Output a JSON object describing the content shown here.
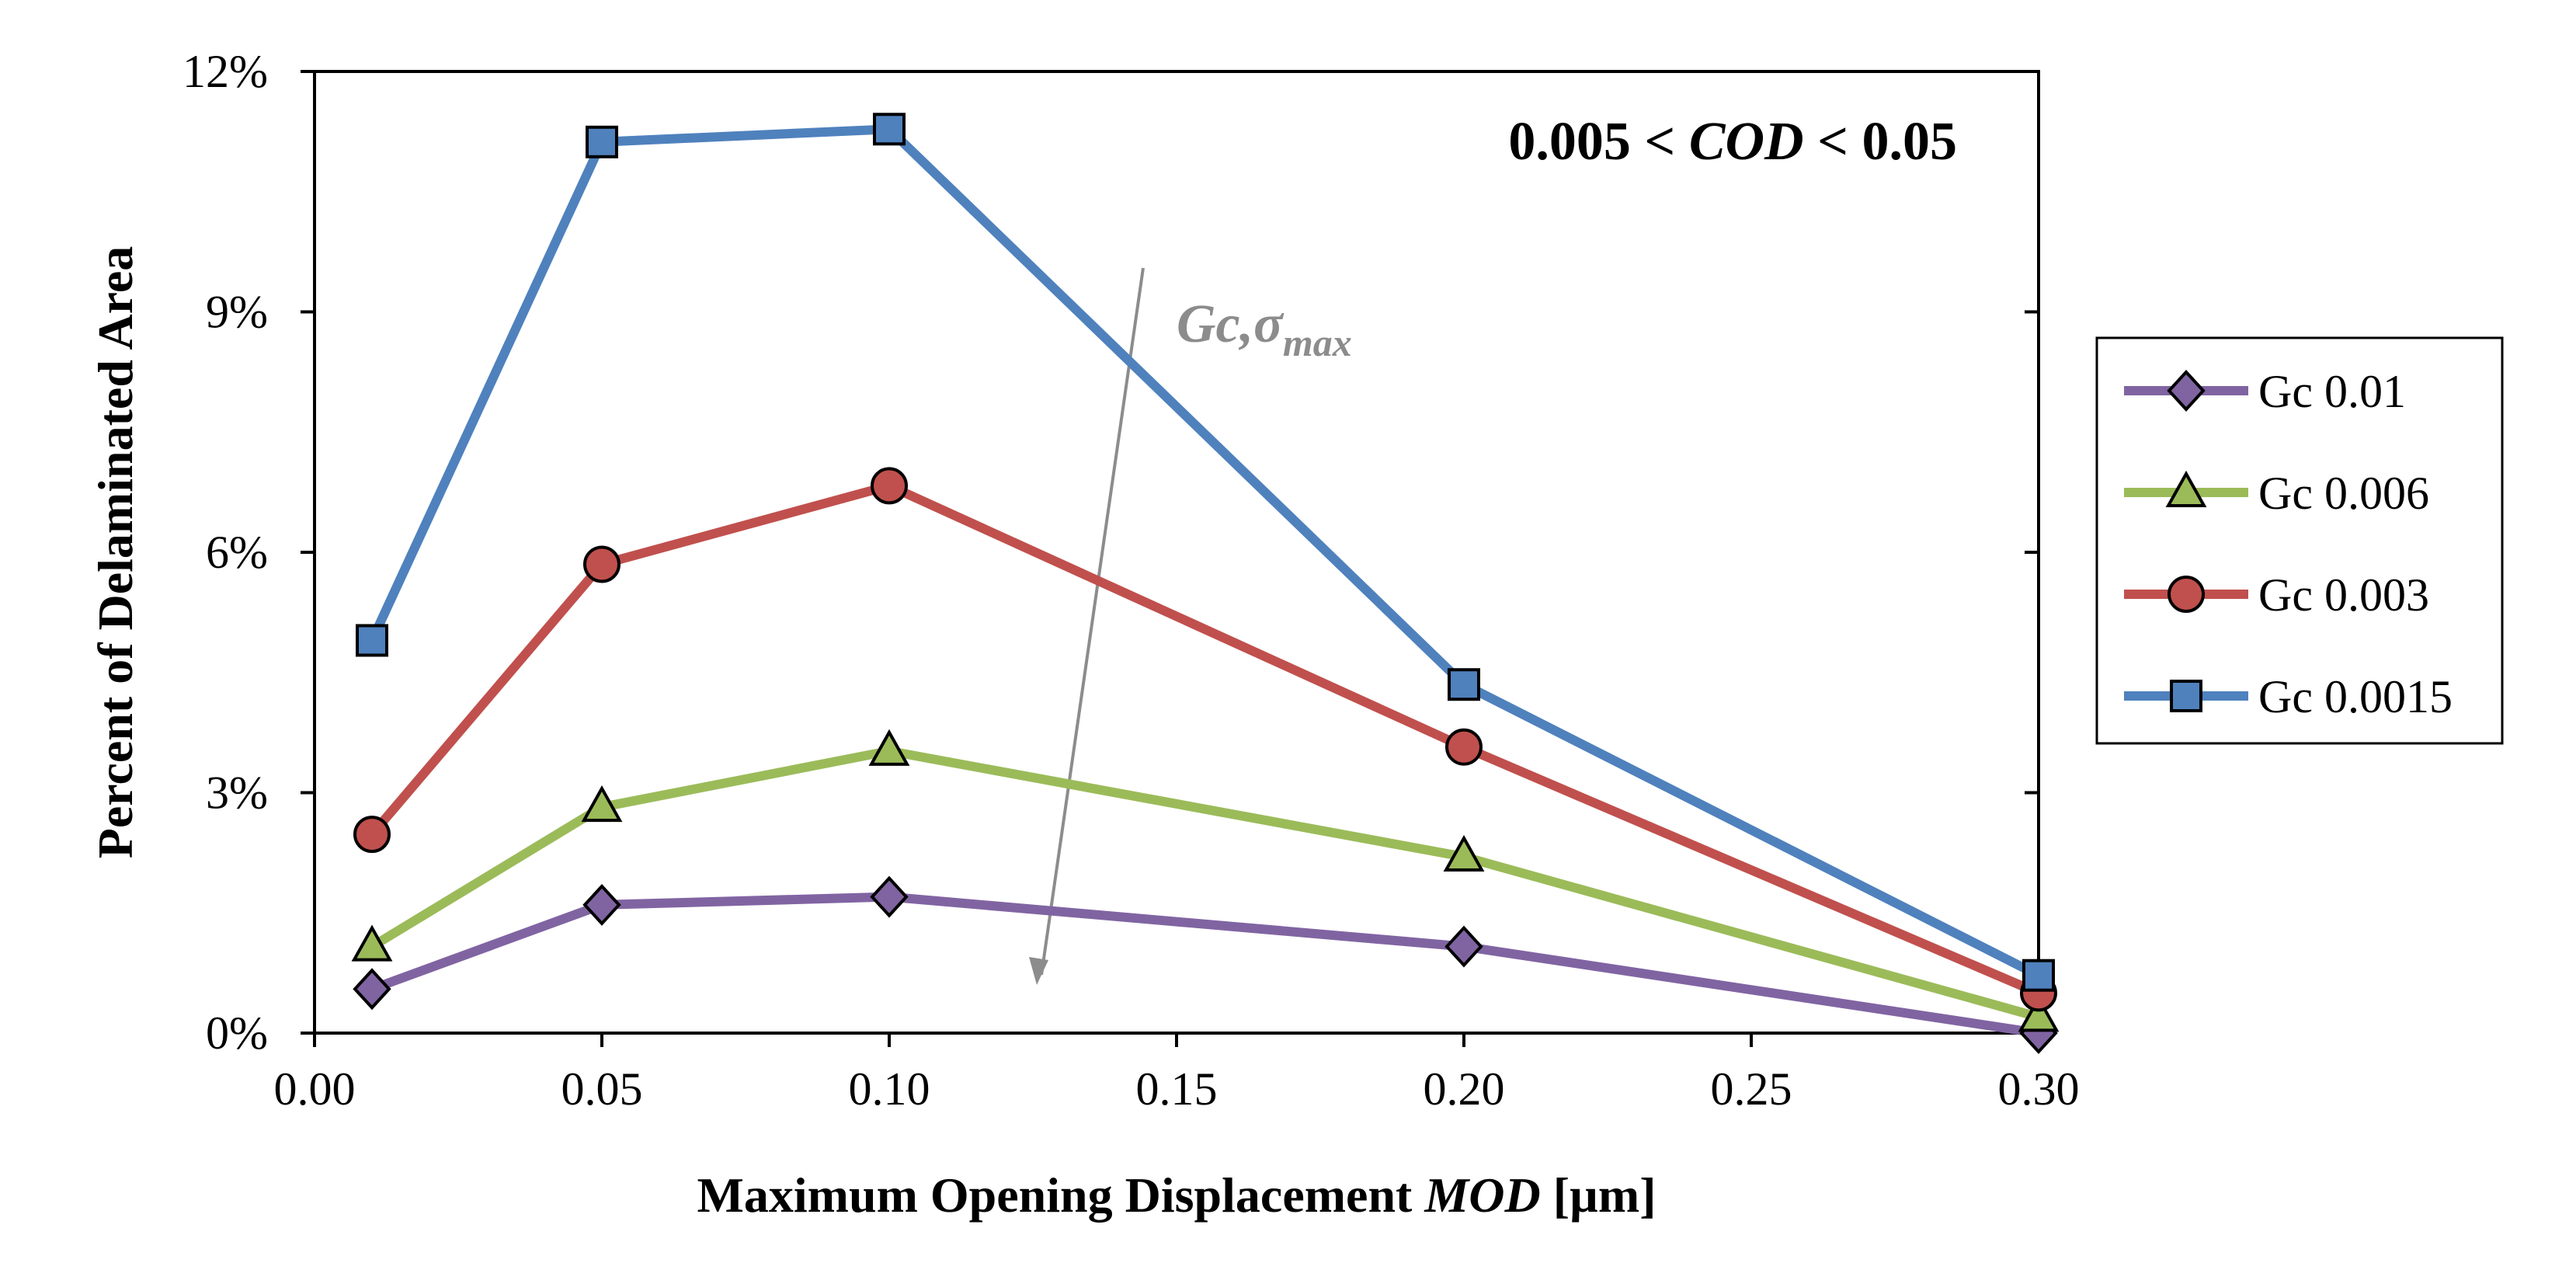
{
  "chart_data": {
    "type": "line",
    "title": "",
    "xlabel": "Maximum Opening Displacement",
    "xlabel_italic": "MOD",
    "xlabel_unit": "[µm]",
    "ylabel": "Percent of Delaminated Area",
    "xlim": [
      0.0,
      0.3
    ],
    "ylim": [
      0,
      12
    ],
    "x_ticks": [
      "0.00",
      "0.05",
      "0.10",
      "0.15",
      "0.20",
      "0.25",
      "0.30"
    ],
    "y_ticks": [
      "0%",
      "3%",
      "6%",
      "9%",
      "12%"
    ],
    "grid": false,
    "legend_position": "right",
    "x": [
      0.01,
      0.05,
      0.1,
      0.2,
      0.3
    ],
    "series": [
      {
        "name": "Gc 0.01",
        "marker": "diamond",
        "color": "#8064a2",
        "values": [
          0.55,
          1.6,
          1.7,
          1.08,
          0.0
        ]
      },
      {
        "name": "Gc 0.006",
        "marker": "triangle",
        "color": "#9bbb59",
        "values": [
          1.08,
          2.82,
          3.52,
          2.2,
          0.2
        ]
      },
      {
        "name": "Gc 0.003",
        "marker": "circle",
        "color": "#c0504d",
        "values": [
          2.48,
          5.85,
          6.83,
          3.57,
          0.5
        ]
      },
      {
        "name": "Gc 0.0015",
        "marker": "square",
        "color": "#4f81bd",
        "values": [
          4.9,
          11.12,
          11.28,
          4.35,
          0.72
        ]
      }
    ],
    "annotations": {
      "range_pre": "0.005 <",
      "range_var": "COD",
      "range_post": "< 0.05",
      "arrow_label": "Gc,",
      "arrow_symbol": "σ",
      "arrow_subscript": "max"
    }
  }
}
